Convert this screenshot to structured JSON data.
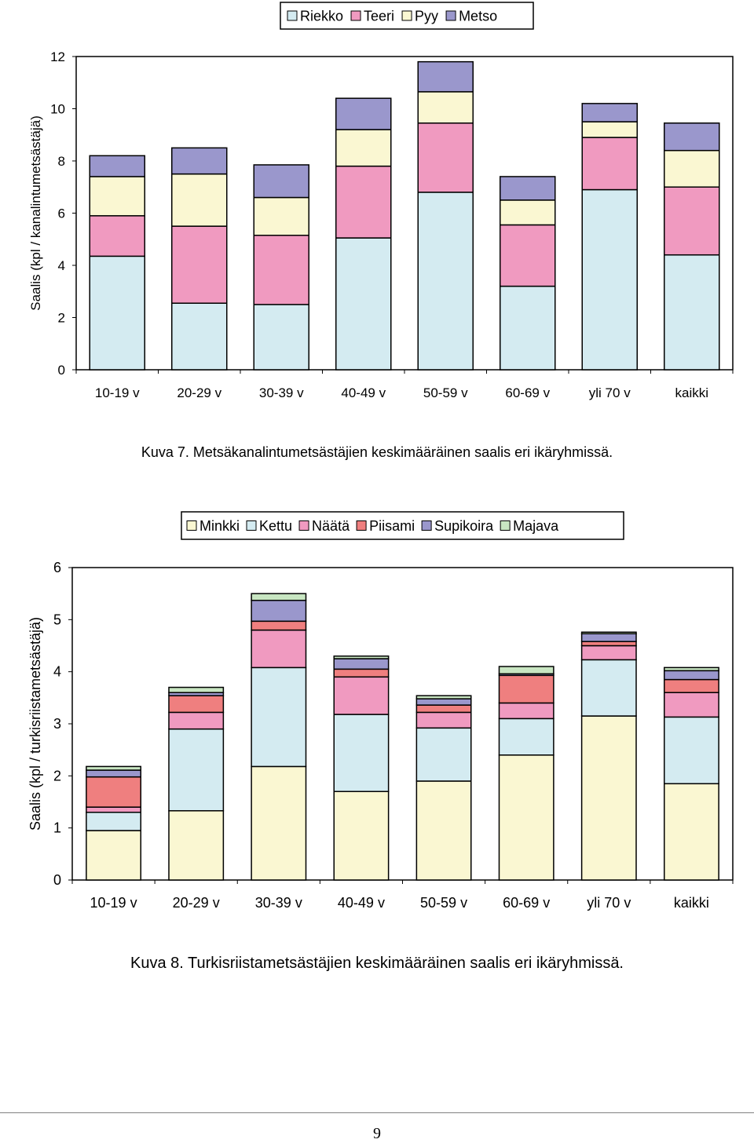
{
  "chart_data": [
    {
      "type": "bar",
      "stacked": true,
      "title": "",
      "xlabel": "",
      "ylabel": "Saalis (kpl / kanalintumetsästäjä)",
      "ylim": [
        0,
        12
      ],
      "yticks": [
        0,
        2,
        4,
        6,
        8,
        10,
        12
      ],
      "grid": false,
      "legend_position": "top-center",
      "categories": [
        "10-19 v",
        "20-29 v",
        "30-39 v",
        "40-49 v",
        "50-59 v",
        "60-69 v",
        "yli 70 v",
        "kaikki"
      ],
      "series": [
        {
          "name": "Riekko",
          "color": "#d4ebf1",
          "values": [
            4.35,
            2.55,
            2.5,
            5.05,
            6.8,
            3.2,
            6.9,
            4.4
          ]
        },
        {
          "name": "Teeri",
          "color": "#f09ac0",
          "values": [
            1.55,
            2.95,
            2.65,
            2.75,
            2.65,
            2.35,
            2.0,
            2.6
          ]
        },
        {
          "name": "Pyy",
          "color": "#faf7d2",
          "values": [
            1.5,
            2.0,
            1.45,
            1.4,
            1.2,
            0.95,
            0.6,
            1.4
          ]
        },
        {
          "name": "Metso",
          "color": "#9a97cc",
          "values": [
            0.8,
            1.0,
            1.25,
            1.2,
            1.15,
            0.9,
            0.7,
            1.05
          ]
        }
      ]
    },
    {
      "type": "bar",
      "stacked": true,
      "title": "",
      "xlabel": "",
      "ylabel": "Saalis (kpl / turkisriistametsästäjä)",
      "ylim": [
        0,
        6
      ],
      "yticks": [
        0,
        1,
        2,
        3,
        4,
        5,
        6
      ],
      "grid": false,
      "legend_position": "top-center",
      "categories": [
        "10-19 v",
        "20-29 v",
        "30-39 v",
        "40-49 v",
        "50-59 v",
        "60-69 v",
        "yli 70 v",
        "kaikki"
      ],
      "series": [
        {
          "name": "Minkki",
          "color": "#faf7d2",
          "values": [
            0.95,
            1.33,
            2.18,
            1.7,
            1.9,
            2.4,
            3.15,
            1.85
          ]
        },
        {
          "name": "Kettu",
          "color": "#d4ebf1",
          "values": [
            0.35,
            1.57,
            1.9,
            1.48,
            1.02,
            0.7,
            1.08,
            1.28
          ]
        },
        {
          "name": "Näätä",
          "color": "#f09ac0",
          "values": [
            0.1,
            0.32,
            0.72,
            0.72,
            0.3,
            0.3,
            0.27,
            0.47
          ]
        },
        {
          "name": "Piisami",
          "color": "#ef7f7f",
          "values": [
            0.58,
            0.32,
            0.17,
            0.15,
            0.14,
            0.53,
            0.08,
            0.25
          ]
        },
        {
          "name": "Supikoira",
          "color": "#9a97cc",
          "values": [
            0.13,
            0.06,
            0.4,
            0.2,
            0.12,
            0.03,
            0.15,
            0.17
          ]
        },
        {
          "name": "Majava",
          "color": "#c8e6c2",
          "values": [
            0.07,
            0.1,
            0.13,
            0.05,
            0.06,
            0.14,
            0.03,
            0.06
          ]
        }
      ]
    }
  ],
  "captions": {
    "figure1": "Kuva 7. Metsäkanalintumetsästäjien keskimääräinen saalis eri ikäryhmissä.",
    "figure2": "Kuva 8. Turkisriistametsästäjien keskimääräinen saalis eri ikäryhmissä."
  },
  "page_number": "9"
}
